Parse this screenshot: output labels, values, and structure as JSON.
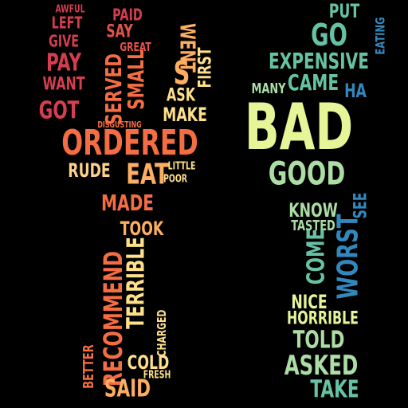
{
  "words": [
    {
      "text": "AWFUL",
      "color": "#d53e4f"
    },
    {
      "text": "LEFT",
      "color": "#d53e4f"
    },
    {
      "text": "GIVE",
      "color": "#d53e4f"
    },
    {
      "text": "PAY",
      "color": "#d53e4f"
    },
    {
      "text": "WANT",
      "color": "#d53e4f"
    },
    {
      "text": "GOT",
      "color": "#d53e4f"
    },
    {
      "text": "PAID",
      "color": "#d53e4f"
    },
    {
      "text": "SAY",
      "color": "#e0524a"
    },
    {
      "text": "GREAT",
      "color": "#e0524a"
    },
    {
      "text": "SERVED",
      "color": "#f46d43"
    },
    {
      "text": "SMALL",
      "color": "#f46d43"
    },
    {
      "text": "WENT",
      "color": "#fdae61"
    },
    {
      "text": "S",
      "color": "#fdae61"
    },
    {
      "text": "FIRST",
      "color": "#fee08b"
    },
    {
      "text": "ASK",
      "color": "#fee08b"
    },
    {
      "text": "MAKE",
      "color": "#fee08b"
    },
    {
      "text": "DISGUSTING",
      "color": "#f46d43"
    },
    {
      "text": "ORDERED",
      "color": "#f46d43"
    },
    {
      "text": "RUDE",
      "color": "#fdd08b"
    },
    {
      "text": "EAT",
      "color": "#fdae61"
    },
    {
      "text": "LITTLE",
      "color": "#fee08b"
    },
    {
      "text": "POOR",
      "color": "#fee08b"
    },
    {
      "text": "MADE",
      "color": "#f46d43"
    },
    {
      "text": "TOOK",
      "color": "#fdae61"
    },
    {
      "text": "TERRIBLE",
      "color": "#fee08b"
    },
    {
      "text": "RECOMMEND",
      "color": "#f46d43"
    },
    {
      "text": "CHARGED",
      "color": "#fee08b"
    },
    {
      "text": "BETTER",
      "color": "#f46d43"
    },
    {
      "text": "COLD",
      "color": "#fee08b"
    },
    {
      "text": "FRESH",
      "color": "#fee08b"
    },
    {
      "text": "SAID",
      "color": "#fdae61"
    },
    {
      "text": "PUT",
      "color": "#66c2a5"
    },
    {
      "text": "GO",
      "color": "#66c2a5"
    },
    {
      "text": "EATING",
      "color": "#3288bd"
    },
    {
      "text": "EXPENSIVE",
      "color": "#66c2a5"
    },
    {
      "text": "CAME",
      "color": "#66c2a5"
    },
    {
      "text": "HA",
      "color": "#3288bd"
    },
    {
      "text": "MANY",
      "color": "#abdda4"
    },
    {
      "text": "BAD",
      "color": "#e6f598"
    },
    {
      "text": "GOOD",
      "color": "#abdda4"
    },
    {
      "text": "KNOW",
      "color": "#abdda4"
    },
    {
      "text": "SEE",
      "color": "#3288bd"
    },
    {
      "text": "TASTED",
      "color": "#abdda4"
    },
    {
      "text": "COME",
      "color": "#66c2a5"
    },
    {
      "text": "WORST",
      "color": "#3288bd"
    },
    {
      "text": "NICE",
      "color": "#e6f598"
    },
    {
      "text": "HORRIBLE",
      "color": "#e6f598"
    },
    {
      "text": "TOLD",
      "color": "#abdda4"
    },
    {
      "text": "ASKED",
      "color": "#abdda4"
    },
    {
      "text": "TAKE",
      "color": "#66c2a5"
    }
  ]
}
